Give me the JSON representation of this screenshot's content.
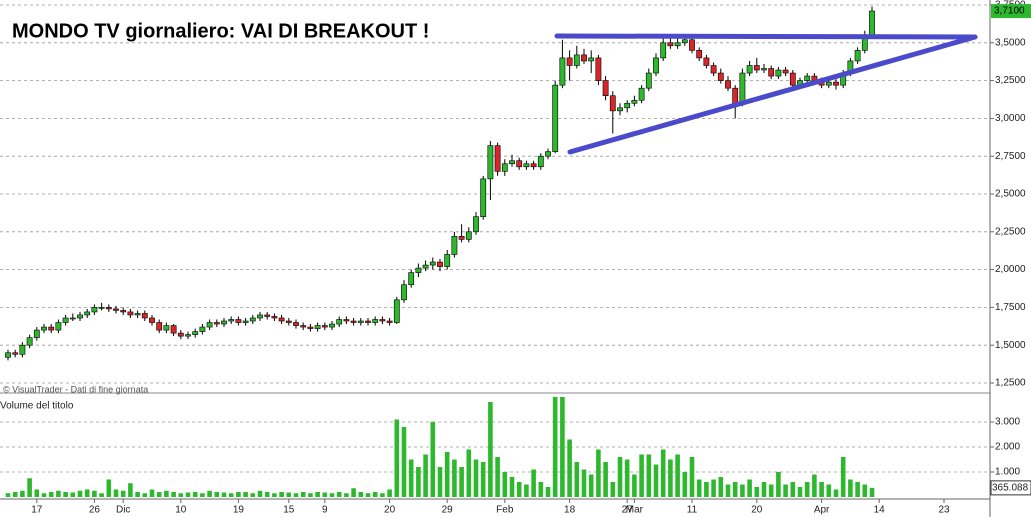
{
  "chart_data": {
    "type": "candlestick",
    "title": "MONDO TV giornaliero: VAI DI BREAKOUT !",
    "source": "© VisualTrader - Dati di fine giornata",
    "volume_title": "Volume del titolo",
    "up_color": "#2eb82e",
    "down_color": "#d8262b",
    "volume_color": "#2eb82e",
    "ylim": [
      1.25,
      3.75
    ],
    "yticks": [
      {
        "value": 1.25,
        "label": "1,2500"
      },
      {
        "value": 1.5,
        "label": "1,5000"
      },
      {
        "value": 1.75,
        "label": "1,7500"
      },
      {
        "value": 2.0,
        "label": "2,0000"
      },
      {
        "value": 2.25,
        "label": "2,2500"
      },
      {
        "value": 2.5,
        "label": "2,5000"
      },
      {
        "value": 2.75,
        "label": "2,7500"
      },
      {
        "value": 3.0,
        "label": "3,0000"
      },
      {
        "value": 3.25,
        "label": "3,2500"
      },
      {
        "value": 3.5,
        "label": "3,5000"
      },
      {
        "value": 3.75,
        "label": "3,7500"
      }
    ],
    "last_price": {
      "value": 3.71,
      "label": "3,7100"
    },
    "y2lim": [
      0,
      4000
    ],
    "y2ticks": [
      {
        "value": 1000,
        "label": "1.000"
      },
      {
        "value": 2000,
        "label": "2.000"
      },
      {
        "value": 3000,
        "label": "3.000"
      }
    ],
    "last_volume": {
      "value": 365.088,
      "label": "365.088"
    },
    "grid": true,
    "categories": [
      null,
      null,
      null,
      null,
      "17",
      null,
      null,
      null,
      null,
      null,
      null,
      null,
      "26",
      null,
      null,
      null,
      "Dic",
      null,
      null,
      null,
      null,
      null,
      null,
      null,
      "10",
      null,
      null,
      null,
      null,
      null,
      null,
      null,
      "19",
      null,
      null,
      null,
      null,
      null,
      null,
      "15",
      null,
      null,
      null,
      null,
      "9",
      null,
      null,
      null,
      null,
      null,
      null,
      null,
      null,
      "20",
      null,
      null,
      null,
      null,
      null,
      null,
      null,
      "29",
      null,
      null,
      null,
      null,
      null,
      null,
      null,
      "Feb",
      null,
      null,
      null,
      null,
      null,
      null,
      null,
      null,
      "18",
      null,
      null,
      null,
      null,
      null,
      null,
      null,
      "27",
      "Mar",
      null,
      null,
      null,
      null,
      null,
      null,
      null,
      "11",
      null,
      null,
      null,
      null,
      null,
      null,
      null,
      null,
      "20",
      null,
      null,
      null,
      null,
      null,
      null,
      null,
      null,
      "Apr",
      null,
      null,
      null,
      null,
      null,
      null,
      null,
      "14",
      null,
      null,
      null,
      null,
      null,
      null,
      null,
      null,
      "23"
    ],
    "ohlc": [
      [
        1.42,
        1.47,
        1.4,
        1.45
      ],
      [
        1.45,
        1.47,
        1.42,
        1.44
      ],
      [
        1.44,
        1.52,
        1.42,
        1.5
      ],
      [
        1.5,
        1.57,
        1.48,
        1.55
      ],
      [
        1.55,
        1.62,
        1.53,
        1.6
      ],
      [
        1.6,
        1.64,
        1.58,
        1.62
      ],
      [
        1.62,
        1.64,
        1.58,
        1.6
      ],
      [
        1.6,
        1.67,
        1.58,
        1.65
      ],
      [
        1.65,
        1.7,
        1.63,
        1.68
      ],
      [
        1.68,
        1.71,
        1.66,
        1.68
      ],
      [
        1.68,
        1.72,
        1.66,
        1.7
      ],
      [
        1.7,
        1.74,
        1.68,
        1.72
      ],
      [
        1.72,
        1.77,
        1.7,
        1.75
      ],
      [
        1.75,
        1.78,
        1.73,
        1.75
      ],
      [
        1.75,
        1.77,
        1.72,
        1.74
      ],
      [
        1.74,
        1.76,
        1.71,
        1.73
      ],
      [
        1.73,
        1.75,
        1.7,
        1.72
      ],
      [
        1.72,
        1.74,
        1.68,
        1.7
      ],
      [
        1.7,
        1.73,
        1.68,
        1.71
      ],
      [
        1.71,
        1.73,
        1.66,
        1.68
      ],
      [
        1.68,
        1.7,
        1.63,
        1.65
      ],
      [
        1.65,
        1.67,
        1.58,
        1.6
      ],
      [
        1.6,
        1.65,
        1.58,
        1.63
      ],
      [
        1.63,
        1.64,
        1.56,
        1.58
      ],
      [
        1.58,
        1.6,
        1.54,
        1.56
      ],
      [
        1.56,
        1.59,
        1.54,
        1.57
      ],
      [
        1.57,
        1.61,
        1.55,
        1.59
      ],
      [
        1.59,
        1.64,
        1.57,
        1.62
      ],
      [
        1.62,
        1.67,
        1.6,
        1.65
      ],
      [
        1.65,
        1.67,
        1.62,
        1.64
      ],
      [
        1.64,
        1.68,
        1.62,
        1.66
      ],
      [
        1.66,
        1.69,
        1.64,
        1.67
      ],
      [
        1.67,
        1.69,
        1.63,
        1.65
      ],
      [
        1.65,
        1.68,
        1.63,
        1.66
      ],
      [
        1.66,
        1.7,
        1.64,
        1.68
      ],
      [
        1.68,
        1.72,
        1.66,
        1.7
      ],
      [
        1.7,
        1.72,
        1.67,
        1.69
      ],
      [
        1.69,
        1.71,
        1.66,
        1.68
      ],
      [
        1.68,
        1.7,
        1.64,
        1.66
      ],
      [
        1.66,
        1.68,
        1.63,
        1.65
      ],
      [
        1.65,
        1.67,
        1.61,
        1.63
      ],
      [
        1.63,
        1.65,
        1.6,
        1.62
      ],
      [
        1.62,
        1.64,
        1.59,
        1.61
      ],
      [
        1.61,
        1.65,
        1.59,
        1.63
      ],
      [
        1.63,
        1.65,
        1.6,
        1.62
      ],
      [
        1.62,
        1.66,
        1.6,
        1.64
      ],
      [
        1.64,
        1.69,
        1.62,
        1.67
      ],
      [
        1.67,
        1.69,
        1.64,
        1.66
      ],
      [
        1.66,
        1.68,
        1.63,
        1.65
      ],
      [
        1.65,
        1.68,
        1.63,
        1.66
      ],
      [
        1.66,
        1.68,
        1.63,
        1.65
      ],
      [
        1.65,
        1.69,
        1.63,
        1.67
      ],
      [
        1.67,
        1.69,
        1.64,
        1.66
      ],
      [
        1.66,
        1.68,
        1.63,
        1.65
      ],
      [
        1.65,
        1.82,
        1.64,
        1.8
      ],
      [
        1.8,
        1.93,
        1.78,
        1.9
      ],
      [
        1.9,
        2.0,
        1.88,
        1.98
      ],
      [
        1.98,
        2.04,
        1.95,
        2.01
      ],
      [
        2.01,
        2.06,
        1.99,
        2.03
      ],
      [
        2.03,
        2.08,
        2.0,
        2.05
      ],
      [
        2.05,
        2.07,
        1.99,
        2.02
      ],
      [
        2.02,
        2.13,
        2.0,
        2.1
      ],
      [
        2.1,
        2.25,
        2.08,
        2.22
      ],
      [
        2.22,
        2.3,
        2.18,
        2.2
      ],
      [
        2.2,
        2.28,
        2.18,
        2.25
      ],
      [
        2.25,
        2.38,
        2.23,
        2.35
      ],
      [
        2.35,
        2.62,
        2.33,
        2.6
      ],
      [
        2.6,
        2.85,
        2.46,
        2.82
      ],
      [
        2.82,
        2.84,
        2.62,
        2.65
      ],
      [
        2.65,
        2.73,
        2.62,
        2.7
      ],
      [
        2.7,
        2.76,
        2.68,
        2.72
      ],
      [
        2.72,
        2.74,
        2.66,
        2.68
      ],
      [
        2.68,
        2.72,
        2.66,
        2.7
      ],
      [
        2.7,
        2.72,
        2.66,
        2.68
      ],
      [
        2.68,
        2.77,
        2.66,
        2.75
      ],
      [
        2.75,
        2.8,
        2.73,
        2.78
      ],
      [
        2.78,
        3.25,
        2.77,
        3.22
      ],
      [
        3.22,
        3.52,
        3.2,
        3.4
      ],
      [
        3.4,
        3.45,
        3.25,
        3.35
      ],
      [
        3.35,
        3.48,
        3.33,
        3.42
      ],
      [
        3.42,
        3.46,
        3.36,
        3.38
      ],
      [
        3.38,
        3.45,
        3.3,
        3.4
      ],
      [
        3.4,
        3.42,
        3.22,
        3.25
      ],
      [
        3.25,
        3.28,
        3.12,
        3.15
      ],
      [
        3.15,
        3.18,
        2.9,
        3.05
      ],
      [
        3.05,
        3.1,
        3.02,
        3.07
      ],
      [
        3.07,
        3.12,
        3.04,
        3.1
      ],
      [
        3.1,
        3.15,
        3.08,
        3.12
      ],
      [
        3.12,
        3.22,
        3.1,
        3.2
      ],
      [
        3.2,
        3.33,
        3.18,
        3.3
      ],
      [
        3.3,
        3.43,
        3.28,
        3.4
      ],
      [
        3.4,
        3.54,
        3.38,
        3.5
      ],
      [
        3.5,
        3.54,
        3.46,
        3.48
      ],
      [
        3.48,
        3.53,
        3.46,
        3.5
      ],
      [
        3.5,
        3.55,
        3.48,
        3.52
      ],
      [
        3.52,
        3.54,
        3.43,
        3.45
      ],
      [
        3.45,
        3.47,
        3.38,
        3.4
      ],
      [
        3.4,
        3.42,
        3.33,
        3.35
      ],
      [
        3.35,
        3.37,
        3.28,
        3.3
      ],
      [
        3.3,
        3.33,
        3.23,
        3.25
      ],
      [
        3.25,
        3.28,
        3.18,
        3.2
      ],
      [
        3.2,
        3.22,
        3.0,
        3.1
      ],
      [
        3.1,
        3.33,
        3.08,
        3.3
      ],
      [
        3.3,
        3.38,
        3.28,
        3.35
      ],
      [
        3.35,
        3.4,
        3.3,
        3.32
      ],
      [
        3.32,
        3.36,
        3.3,
        3.33
      ],
      [
        3.33,
        3.35,
        3.26,
        3.28
      ],
      [
        3.28,
        3.34,
        3.26,
        3.32
      ],
      [
        3.32,
        3.34,
        3.28,
        3.3
      ],
      [
        3.3,
        3.32,
        3.19,
        3.22
      ],
      [
        3.22,
        3.27,
        3.2,
        3.25
      ],
      [
        3.25,
        3.3,
        3.23,
        3.28
      ],
      [
        3.28,
        3.3,
        3.23,
        3.25
      ],
      [
        3.25,
        3.27,
        3.2,
        3.22
      ],
      [
        3.22,
        3.26,
        3.2,
        3.24
      ],
      [
        3.24,
        3.26,
        3.19,
        3.22
      ],
      [
        3.22,
        3.32,
        3.2,
        3.3
      ],
      [
        3.3,
        3.4,
        3.28,
        3.38
      ],
      [
        3.38,
        3.47,
        3.36,
        3.45
      ],
      [
        3.45,
        3.58,
        3.43,
        3.55
      ],
      [
        3.55,
        3.74,
        3.53,
        3.71
      ],
      null,
      null,
      null,
      null,
      null,
      null,
      null,
      null,
      null,
      null
    ],
    "volume": [
      150,
      200,
      250,
      750,
      300,
      150,
      200,
      250,
      200,
      180,
      250,
      300,
      250,
      150,
      700,
      300,
      250,
      550,
      200,
      150,
      300,
      200,
      250,
      200,
      150,
      180,
      200,
      150,
      250,
      200,
      180,
      150,
      200,
      200,
      150,
      250,
      200,
      150,
      200,
      180,
      150,
      200,
      150,
      200,
      180,
      150,
      200,
      150,
      350,
      200,
      150,
      200,
      150,
      300,
      3100,
      2800,
      1500,
      1200,
      1700,
      3000,
      1200,
      1800,
      1500,
      1200,
      1900,
      1500,
      1400,
      3800,
      1600,
      1000,
      800,
      600,
      500,
      1100,
      600,
      400,
      4000,
      4000,
      2300,
      1400,
      1100,
      900,
      1900,
      1400,
      600,
      1600,
      1500,
      900,
      1700,
      1700,
      1300,
      1900,
      1500,
      1700,
      1000,
      1600,
      700,
      600,
      700,
      800,
      500,
      600,
      500,
      700,
      400,
      600,
      500,
      1000,
      500,
      600,
      400,
      600,
      900,
      600,
      500,
      300,
      1600,
      700,
      600,
      500,
      365.088,
      null,
      null,
      null,
      null,
      null,
      null,
      null,
      null,
      null,
      null
    ]
  }
}
